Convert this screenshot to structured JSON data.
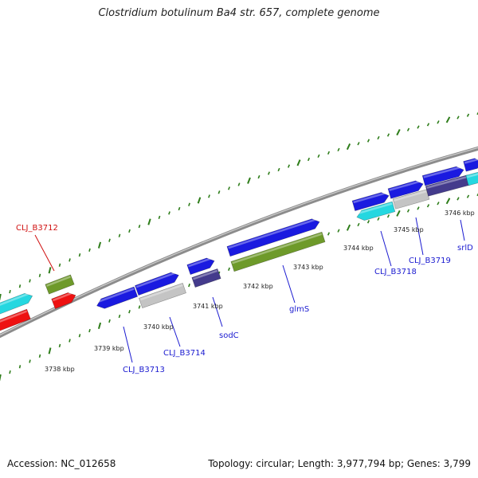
{
  "title": "Clostridium botulinum Ba4 str. 657, complete genome",
  "footer": {
    "accession": "Accession: NC_012658",
    "summary": "Topology: circular; Length: 3,977,794 bp; Genes: 3,799"
  },
  "colors": {
    "backbone": "#9a9a9a",
    "tick": "#2e7d1a",
    "cds_blue": "#1a1ae0",
    "cds_cyan": "#25d7e0",
    "cds_green": "#6e9a2a",
    "cds_red": "#ee1111",
    "cds_grey": "#c4c4c4",
    "cds_navy": "#443b8c",
    "label_blue": "#1a1ad0",
    "label_red": "#d01010"
  },
  "kbp_labels": [
    "3738 kbp",
    "3739 kbp",
    "3740 kbp",
    "3741 kbp",
    "3742 kbp",
    "3743 kbp",
    "3744 kbp",
    "3745 kbp",
    "3746 kbp"
  ],
  "gene_labels": [
    "CLJ_B3712",
    "CLJ_B3713",
    "CLJ_B3714",
    "sodC",
    "glmS",
    "CLJ_B3718",
    "CLJ_B3719",
    "srlD"
  ]
}
